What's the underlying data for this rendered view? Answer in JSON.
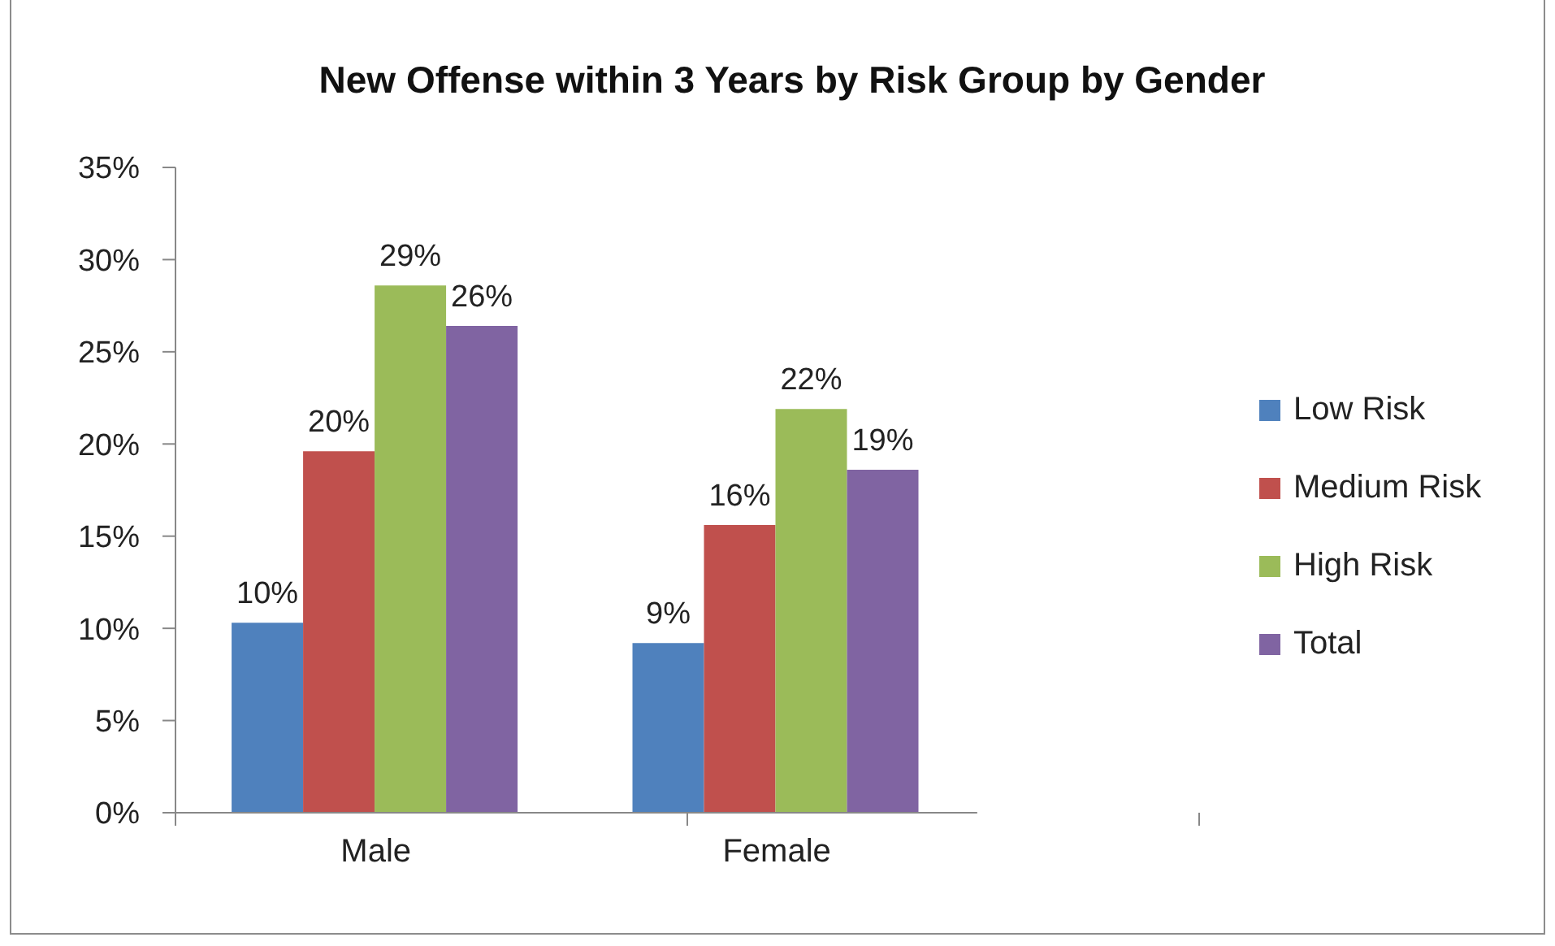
{
  "chart_data": {
    "type": "bar",
    "title": "New Offense within 3 Years by Risk Group by Gender",
    "categories": [
      "Male",
      "Female"
    ],
    "series": [
      {
        "name": "Low Risk",
        "color": "#4f81bd",
        "values": [
          10.3,
          9.2
        ],
        "value_labels": [
          "10%",
          "9%"
        ]
      },
      {
        "name": "Medium Risk",
        "color": "#c0504d",
        "values": [
          19.6,
          15.6
        ],
        "value_labels": [
          "20%",
          "16%"
        ]
      },
      {
        "name": "High Risk",
        "color": "#9bbb59",
        "values": [
          28.6,
          21.9
        ],
        "value_labels": [
          "29%",
          "22%"
        ]
      },
      {
        "name": "Total",
        "color": "#8064a2",
        "values": [
          26.4,
          18.6
        ],
        "value_labels": [
          "26%",
          "19%"
        ]
      }
    ],
    "ylim": [
      0,
      35
    ],
    "yticks": [
      {
        "value": 0,
        "label": "0%"
      },
      {
        "value": 5,
        "label": "5%"
      },
      {
        "value": 10,
        "label": "10%"
      },
      {
        "value": 15,
        "label": "15%"
      },
      {
        "value": 20,
        "label": "20%"
      },
      {
        "value": 25,
        "label": "25%"
      },
      {
        "value": 30,
        "label": "30%"
      },
      {
        "value": 35,
        "label": "35%"
      }
    ],
    "legend": "right"
  }
}
